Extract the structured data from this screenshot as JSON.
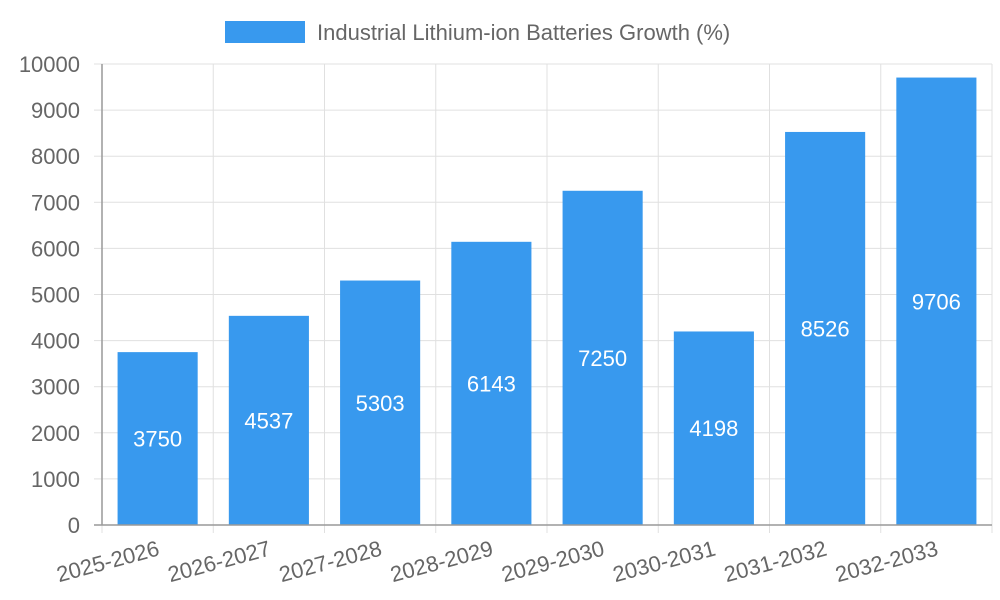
{
  "chart_data": {
    "type": "bar",
    "title": "",
    "categories": [
      "2025-2026",
      "2026-2027",
      "2027-2028",
      "2028-2029",
      "2029-2030",
      "2030-2031",
      "2031-2032",
      "2032-2033"
    ],
    "series": [
      {
        "name": "Industrial Lithium-ion Batteries Growth (%)",
        "values": [
          3750,
          4537,
          5303,
          6143,
          7250,
          4198,
          8526,
          9706
        ],
        "color": "#3899EE"
      }
    ],
    "xlabel": "",
    "ylabel": "",
    "ylim": [
      0,
      10000
    ],
    "yticks": [
      0,
      1000,
      2000,
      3000,
      4000,
      5000,
      6000,
      7000,
      8000,
      9000,
      10000
    ],
    "grid": true,
    "legend_position": "top-center",
    "data_labels": true
  },
  "colors": {
    "bar": "#3899EE",
    "grid": "#e0e0e0",
    "axis": "#999999",
    "text": "#666666",
    "data_label": "#ffffff"
  }
}
